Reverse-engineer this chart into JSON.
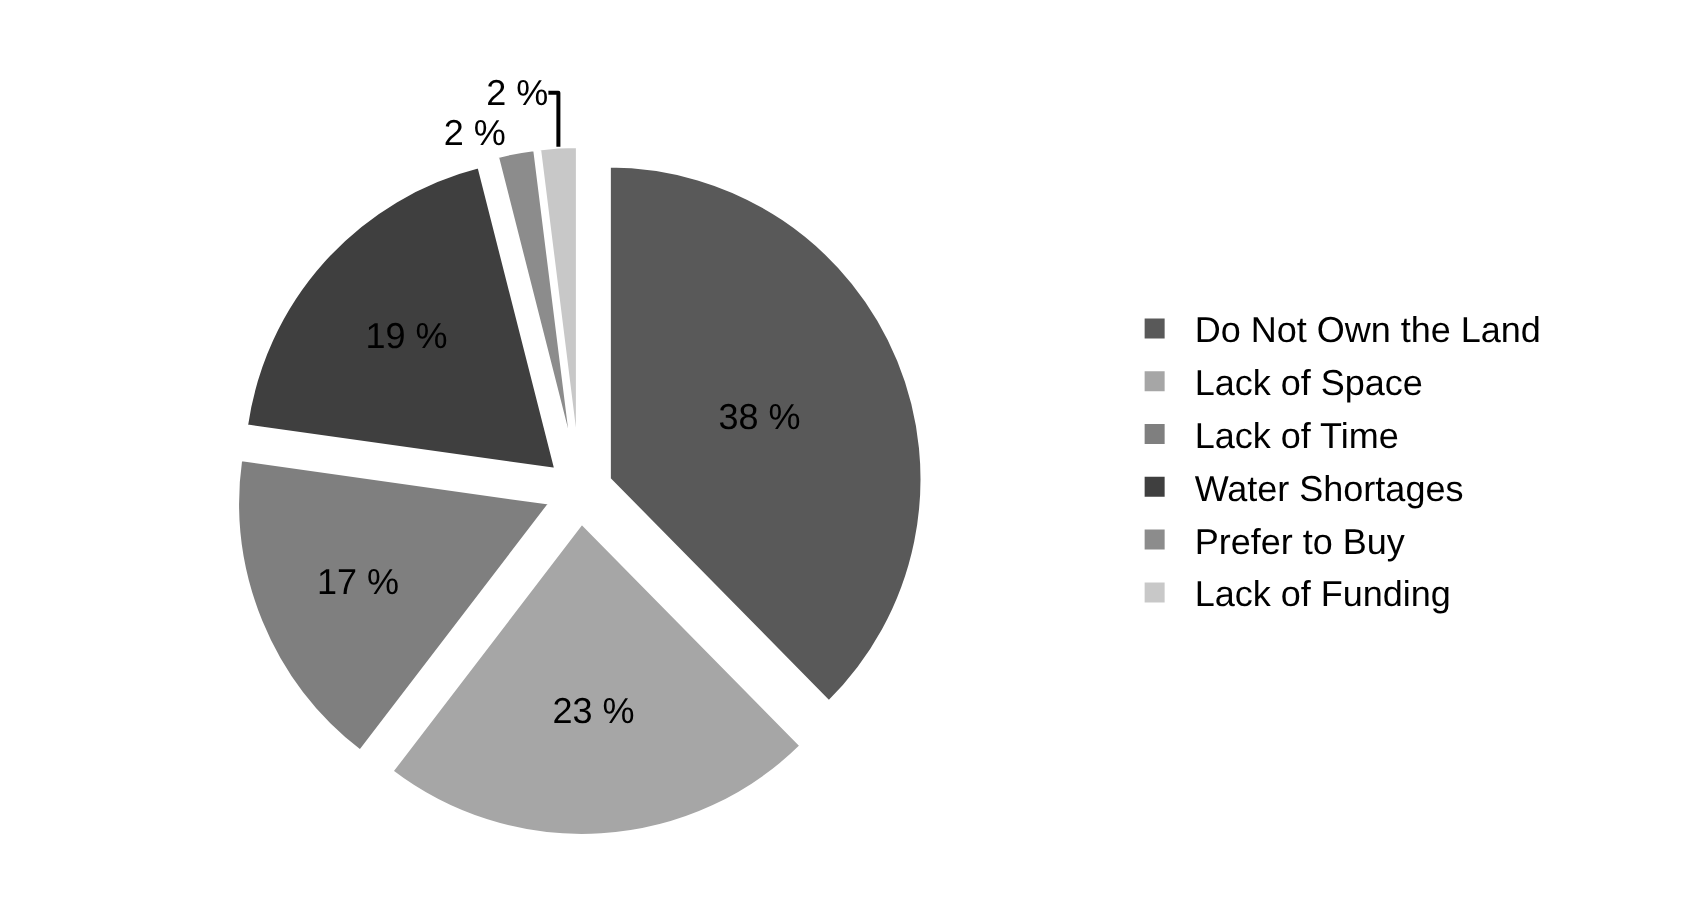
{
  "chart_data": {
    "type": "pie",
    "categories": [
      "Do Not Own the Land",
      "Lack of Space",
      "Lack of Time",
      "Water Shortages",
      "Prefer to Buy",
      "Lack of Funding"
    ],
    "values": [
      38,
      23,
      17,
      19,
      2,
      2
    ],
    "colors": [
      "#595959",
      "#a6a6a6",
      "#7f7f7f",
      "#3f3f3f",
      "#8c8c8c",
      "#c8c8c8"
    ],
    "value_labels": [
      "38 %",
      "23 %",
      "17 %",
      "19 %",
      "2 %",
      "2 %"
    ],
    "legend": "right"
  }
}
